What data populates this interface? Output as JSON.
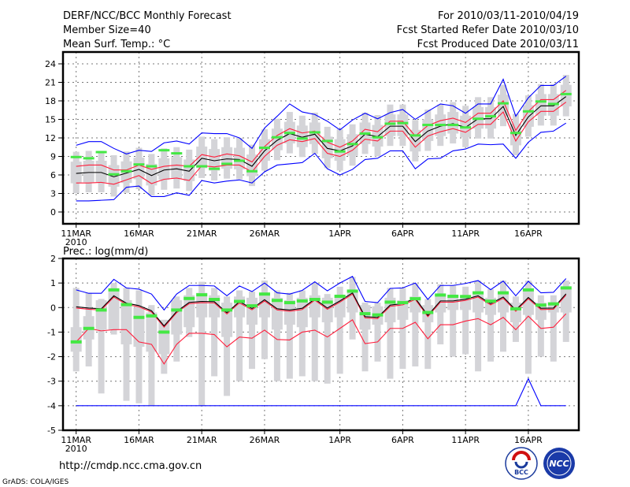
{
  "header": {
    "title": "DERF/NCC/BCC Monthly Forecast",
    "member_size": "Member Size=40",
    "variable": "Mean Surf. Temp.: °C",
    "period": "For 2010/03/11-2010/04/19",
    "started": "Fcst Started Refer Date 2010/03/10",
    "produced": "Fcst Produced Date 2010/03/11"
  },
  "footer": {
    "url": "http://cmdp.ncc.cma.gov.cn",
    "grads": "GrADS: COLA/IGES",
    "logo_bcc": "BCC",
    "logo_ncc": "NCC"
  },
  "colors": {
    "max_min": "#0000ff",
    "spread": "#ff1e3c",
    "mean": "#000000",
    "median": "#44e844",
    "box": "#d4d4d8"
  },
  "chart_data": [
    {
      "type": "line",
      "title": "Mean Surf. Temp.: °C",
      "ylim": [
        -2,
        25
      ],
      "yticks": [
        0,
        3,
        6,
        9,
        12,
        15,
        18,
        21,
        24
      ],
      "xticks": [
        {
          "day": 0,
          "label": "11MAR",
          "sub": "2010"
        },
        {
          "day": 5,
          "label": "16MAR"
        },
        {
          "day": 10,
          "label": "21MAR"
        },
        {
          "day": 15,
          "label": "26MAR"
        },
        {
          "day": 21,
          "label": "1APR"
        },
        {
          "day": 26,
          "label": "6APR"
        },
        {
          "day": 31,
          "label": "11APR"
        },
        {
          "day": 36,
          "label": "16APR"
        }
      ],
      "days": 40,
      "series": {
        "max": [
          10.8,
          11.4,
          11.4,
          10.3,
          9.4,
          10.0,
          9.8,
          11.2,
          11.5,
          11.0,
          12.8,
          12.7,
          12.7,
          12.0,
          10.3,
          13.6,
          15.5,
          17.5,
          16.2,
          15.8,
          14.7,
          13.3,
          14.9,
          16.0,
          15.1,
          16.1,
          16.6,
          15.0,
          16.3,
          17.5,
          17.2,
          16.0,
          17.5,
          17.5,
          21.5,
          15.5,
          18.5,
          20.5,
          20.5,
          22.0
        ],
        "upper": [
          7.4,
          7.6,
          7.6,
          6.8,
          6.8,
          7.6,
          6.9,
          7.4,
          7.6,
          7.4,
          9.3,
          8.9,
          9.4,
          9.1,
          8.1,
          10.6,
          12.4,
          13.5,
          12.8,
          13.1,
          11.3,
          10.5,
          11.5,
          13.4,
          13.0,
          14.7,
          14.7,
          12.3,
          14.0,
          14.8,
          15.2,
          14.5,
          16.0,
          16.0,
          18.0,
          13.2,
          16.3,
          18.2,
          18.2,
          19.7
        ],
        "mean": [
          6.25,
          6.4,
          6.4,
          5.7,
          6.3,
          6.9,
          5.9,
          6.8,
          7.0,
          6.6,
          8.7,
          8.3,
          8.6,
          8.5,
          7.4,
          9.9,
          11.6,
          12.7,
          12.1,
          12.6,
          10.3,
          9.9,
          10.7,
          12.6,
          12.2,
          13.9,
          13.9,
          11.4,
          13.1,
          13.9,
          14.3,
          13.7,
          15.1,
          15.1,
          17.1,
          12.4,
          15.4,
          17.2,
          17.2,
          18.7
        ],
        "lower": [
          4.7,
          4.7,
          4.8,
          4.5,
          5.2,
          5.9,
          4.6,
          5.3,
          5.5,
          5.1,
          7.5,
          7.3,
          7.6,
          7.6,
          6.5,
          9.0,
          10.8,
          11.7,
          11.4,
          11.9,
          9.5,
          9.0,
          10.0,
          11.8,
          11.5,
          13.1,
          13.1,
          10.5,
          12.3,
          13.0,
          13.5,
          12.9,
          14.2,
          14.2,
          16.2,
          11.5,
          14.6,
          16.3,
          16.3,
          17.8
        ],
        "min": [
          1.8,
          1.8,
          1.9,
          2.0,
          4.0,
          4.2,
          2.5,
          2.5,
          3.1,
          2.7,
          5.1,
          4.7,
          5.0,
          5.2,
          4.7,
          6.5,
          7.6,
          7.8,
          8.0,
          9.5,
          7.0,
          6.0,
          6.9,
          8.5,
          8.7,
          9.9,
          9.9,
          7.0,
          8.6,
          8.7,
          9.9,
          10.2,
          11.0,
          10.9,
          11.0,
          8.7,
          11.3,
          12.9,
          13.1,
          14.4
        ],
        "median": [
          8.9,
          8.7,
          9.7,
          6.1,
          6.6,
          7.7,
          7.4,
          10.0,
          9.5,
          7.4,
          7.4,
          7.0,
          7.8,
          8.3,
          6.6,
          10.4,
          12.1,
          12.8,
          11.9,
          12.9,
          11.5,
          9.8,
          11.0,
          12.7,
          12.1,
          14.3,
          14.4,
          12.4,
          14.1,
          14.1,
          14.1,
          13.7,
          15.1,
          15.5,
          17.6,
          12.8,
          16.3,
          17.9,
          17.5,
          19.1
        ],
        "whisker_low": [
          3.05,
          3.2,
          3.2,
          2.5,
          3.1,
          3.7,
          2.7,
          3.6,
          3.8,
          3.4,
          5.5,
          5.1,
          5.4,
          5.3,
          4.2,
          6.7,
          8.4,
          9.5,
          8.9,
          9.4,
          7.1,
          6.7,
          7.5,
          9.4,
          9.0,
          10.7,
          10.7,
          8.2,
          9.9,
          10.7,
          11.1,
          10.5,
          11.9,
          11.9,
          13.9,
          9.2,
          12.2,
          14.0,
          14.0,
          15.5
        ],
        "whisker_high": [
          9.75,
          9.9,
          9.9,
          9.2,
          9.8,
          10.4,
          9.4,
          10.3,
          10.5,
          10.1,
          12.2,
          11.8,
          12.1,
          12.0,
          10.9,
          13.4,
          15.1,
          16.2,
          15.6,
          16.1,
          13.8,
          13.4,
          14.2,
          16.1,
          15.7,
          17.4,
          17.4,
          14.9,
          16.6,
          17.4,
          17.8,
          17.2,
          18.6,
          18.6,
          20.6,
          15.9,
          18.9,
          20.7,
          20.7,
          22.2
        ],
        "box_low": [
          4.65,
          4.8,
          4.8,
          4.1,
          4.7,
          5.3,
          4.3,
          5.2,
          5.4,
          5.0,
          7.1,
          6.7,
          7.0,
          6.9,
          5.8,
          8.3,
          10.0,
          11.1,
          10.5,
          11.0,
          8.7,
          8.3,
          9.1,
          11.0,
          10.6,
          12.3,
          12.3,
          9.8,
          11.5,
          12.3,
          12.7,
          12.1,
          13.5,
          13.5,
          15.5,
          10.8,
          13.8,
          15.6,
          15.6,
          17.1
        ],
        "box_high": [
          8.15,
          8.3,
          8.3,
          7.6,
          8.2,
          8.8,
          7.8,
          8.7,
          8.9,
          8.5,
          10.6,
          10.2,
          10.5,
          10.4,
          9.3,
          11.8,
          13.5,
          14.6,
          14.0,
          14.5,
          12.2,
          11.8,
          12.6,
          14.5,
          14.1,
          15.8,
          15.8,
          13.3,
          15.0,
          15.8,
          16.2,
          15.6,
          17.0,
          17.0,
          19.0,
          14.3,
          17.3,
          19.1,
          19.1,
          20.6
        ]
      }
    },
    {
      "type": "line",
      "title": "Prec.: log(mm/d)",
      "ylim": [
        -5,
        2
      ],
      "yticks": [
        -5,
        -4,
        -3,
        -2,
        -1,
        0,
        1,
        2
      ],
      "xticks": [
        {
          "day": 0,
          "label": "11MAR",
          "sub": "2010"
        },
        {
          "day": 5,
          "label": "16MAR"
        },
        {
          "day": 10,
          "label": "21MAR"
        },
        {
          "day": 15,
          "label": "26MAR"
        },
        {
          "day": 21,
          "label": "1APR"
        },
        {
          "day": 26,
          "label": "6APR"
        },
        {
          "day": 31,
          "label": "11APR"
        },
        {
          "day": 36,
          "label": "16APR"
        }
      ],
      "days": 40,
      "series": {
        "max": [
          0.72,
          0.58,
          0.58,
          1.15,
          0.8,
          0.75,
          0.55,
          -0.1,
          0.55,
          0.9,
          0.9,
          0.88,
          0.48,
          0.88,
          0.65,
          1.0,
          0.6,
          0.55,
          0.7,
          1.05,
          0.68,
          1.0,
          1.27,
          0.25,
          0.2,
          0.78,
          0.8,
          1.0,
          0.33,
          0.9,
          0.9,
          0.98,
          1.1,
          0.73,
          1.08,
          0.48,
          1.07,
          0.6,
          0.62,
          1.18
        ],
        "upper": [
          -0.02,
          -0.07,
          -0.1,
          0.43,
          0.13,
          0.03,
          -0.18,
          -0.8,
          -0.21,
          0.16,
          0.2,
          0.19,
          -0.26,
          0.19,
          -0.09,
          0.27,
          -0.1,
          -0.15,
          -0.08,
          0.3,
          -0.07,
          0.22,
          0.55,
          -0.42,
          -0.45,
          0.05,
          0.11,
          0.33,
          -0.37,
          0.22,
          0.22,
          0.29,
          0.43,
          0.11,
          0.38,
          -0.15,
          0.36,
          -0.08,
          -0.07,
          0.51
        ],
        "mean": [
          0.03,
          -0.02,
          -0.05,
          0.48,
          0.18,
          0.08,
          -0.13,
          -0.75,
          -0.16,
          0.21,
          0.25,
          0.24,
          -0.21,
          0.24,
          -0.04,
          0.32,
          -0.05,
          -0.1,
          -0.03,
          0.35,
          -0.02,
          0.27,
          0.6,
          -0.37,
          -0.4,
          0.1,
          0.16,
          0.38,
          -0.32,
          0.27,
          0.27,
          0.34,
          0.48,
          0.16,
          0.43,
          -0.1,
          0.41,
          -0.03,
          -0.02,
          0.56
        ],
        "lower": [
          -1.4,
          -0.85,
          -0.95,
          -0.9,
          -0.9,
          -1.4,
          -1.5,
          -2.3,
          -1.5,
          -1.05,
          -1.05,
          -1.1,
          -1.6,
          -1.2,
          -1.25,
          -0.92,
          -1.3,
          -1.32,
          -1.0,
          -0.92,
          -1.2,
          -0.85,
          -0.5,
          -1.47,
          -1.4,
          -0.85,
          -0.85,
          -0.6,
          -1.27,
          -0.7,
          -0.7,
          -0.55,
          -0.45,
          -0.7,
          -0.4,
          -0.9,
          -0.35,
          -0.85,
          -0.8,
          -0.25
        ],
        "min": [
          -4,
          -4,
          -4,
          -4,
          -4,
          -4,
          -4,
          -4,
          -4,
          -4,
          -4,
          -4,
          -4,
          -4,
          -4,
          -4,
          -4,
          -4,
          -4,
          -4,
          -4,
          -4,
          -4,
          -4,
          -4,
          -4,
          -4,
          -4,
          -4,
          -4,
          -4,
          -4,
          -4,
          -4,
          -4,
          -4,
          -2.9,
          -4,
          -4,
          -4
        ],
        "median": [
          -1.4,
          -0.85,
          -0.1,
          0.72,
          0.12,
          -0.4,
          -0.34,
          -1.0,
          -0.1,
          0.37,
          0.52,
          0.33,
          -0.1,
          0.25,
          0.07,
          0.55,
          0.29,
          0.2,
          0.27,
          0.33,
          0.22,
          0.46,
          0.67,
          -0.25,
          -0.3,
          0.22,
          0.2,
          0.36,
          -0.2,
          0.51,
          0.46,
          0.45,
          0.6,
          0.26,
          0.6,
          -0.05,
          0.72,
          0.1,
          0.15,
          0.8
        ],
        "whisker_low": [
          -2.6,
          -2.4,
          -3.5,
          -1.1,
          -3.8,
          -3.9,
          -4.0,
          -2.7,
          -2.2,
          -1.2,
          -4.0,
          -2.8,
          -3.6,
          -3.0,
          -2.5,
          -2.1,
          -3.0,
          -2.9,
          -2.8,
          -3.0,
          -3.1,
          -2.7,
          -1.3,
          -2.6,
          -2.2,
          -2.9,
          -2.5,
          -2.4,
          -2.5,
          -1.5,
          -2.0,
          -1.9,
          -2.6,
          -2.2,
          -1.8,
          -1.4,
          -2.7,
          -2.0,
          -2.2,
          -1.4
        ],
        "whisker_high": [
          0.8,
          0.6,
          0.35,
          1.0,
          0.8,
          0.7,
          0.1,
          -0.5,
          0.45,
          0.8,
          1.05,
          0.8,
          0.45,
          0.7,
          0.65,
          1.1,
          0.7,
          0.6,
          0.7,
          1.0,
          0.55,
          0.85,
          1.25,
          0.2,
          0.2,
          0.8,
          0.8,
          1.0,
          0.35,
          0.95,
          0.9,
          0.85,
          1.1,
          0.75,
          1.1,
          0.45,
          1.1,
          0.5,
          0.5,
          1.1
        ],
        "box_low": [
          -1.8,
          -1.3,
          -0.9,
          -0.9,
          -1.5,
          -1.6,
          -1.8,
          -1.9,
          -1.1,
          -0.8,
          -0.4,
          -0.4,
          -1.2,
          -0.4,
          -0.7,
          -0.4,
          -0.9,
          -0.7,
          -0.8,
          -0.4,
          -0.6,
          -0.4,
          -0.2,
          -0.9,
          -0.7,
          -0.6,
          -0.5,
          -0.2,
          -0.6,
          -0.2,
          -0.1,
          -0.1,
          -0.2,
          -0.3,
          -0.2,
          -0.6,
          -0.3,
          -0.5,
          -0.2,
          -0.2
        ],
        "box_high": [
          -0.8,
          -0.35,
          0.3,
          0.7,
          0.3,
          0.0,
          -0.2,
          -0.5,
          0.3,
          0.5,
          0.6,
          0.5,
          0.2,
          0.45,
          0.4,
          0.6,
          0.4,
          0.3,
          0.4,
          0.5,
          0.4,
          0.5,
          0.7,
          0.1,
          0.05,
          0.4,
          0.3,
          0.45,
          0.1,
          0.55,
          0.45,
          0.5,
          0.65,
          0.4,
          0.65,
          0.2,
          0.75,
          0.2,
          0.2,
          0.85
        ]
      }
    }
  ]
}
